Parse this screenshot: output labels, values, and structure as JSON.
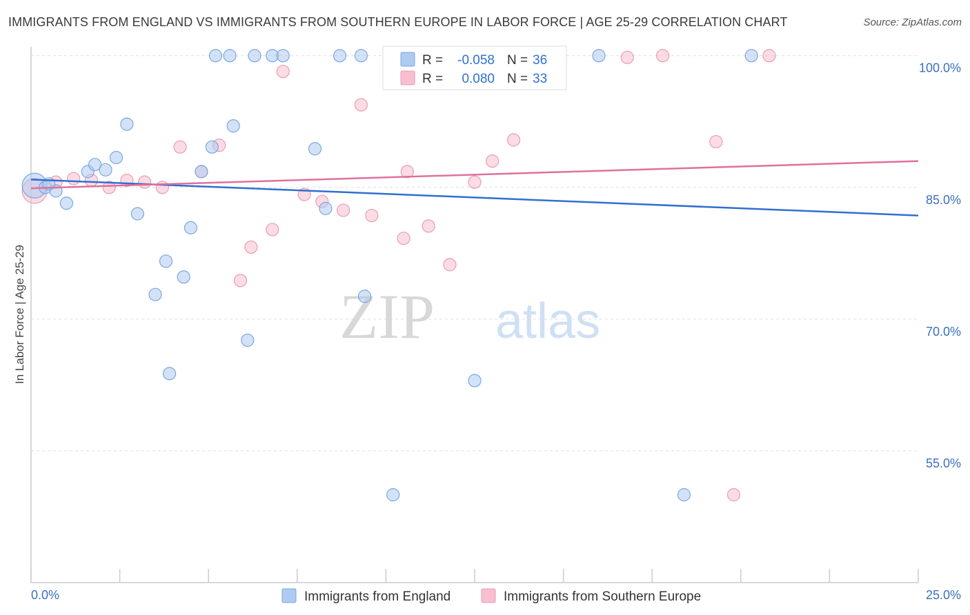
{
  "title": "IMMIGRANTS FROM ENGLAND VS IMMIGRANTS FROM SOUTHERN EUROPE IN LABOR FORCE | AGE 25-29 CORRELATION CHART",
  "source": "Source: ZipAtlas.com",
  "watermark": {
    "zip": "ZIP",
    "atlas": "atlas"
  },
  "legend": {
    "england": {
      "r_label": "R =",
      "r_value": "-0.058",
      "n_label": "N =",
      "n_value": "36"
    },
    "southern": {
      "r_label": "R =",
      "r_value": "0.080",
      "n_label": "N =",
      "n_value": "33"
    }
  },
  "colors": {
    "england_fill": "#aecbf0",
    "england_stroke": "#7aa7e0",
    "england_line": "#2f6fd0",
    "southern_fill": "#f7bfd0",
    "southern_stroke": "#ec9ab3",
    "southern_line": "#e0709a"
  },
  "chart_data": {
    "type": "scatter",
    "xlabel": "",
    "ylabel": "In Labor Force | Age 25-29",
    "xlim": [
      0,
      25
    ],
    "ylim": [
      40,
      101
    ],
    "x_tick_labels": [
      "0.0%",
      "25.0%"
    ],
    "y_ticks": [
      55,
      70,
      85,
      100
    ],
    "y_tick_labels": [
      "55.0%",
      "70.0%",
      "85.0%",
      "100.0%"
    ],
    "grid": true,
    "legend_position": "top-center",
    "series": [
      {
        "name": "Immigrants from England",
        "trend": [
          [
            0,
            85.9
          ],
          [
            25,
            81.8
          ]
        ],
        "points": [
          [
            0.1,
            85.2,
            18
          ],
          [
            0.4,
            85.0,
            9
          ],
          [
            0.7,
            84.6,
            9
          ],
          [
            1.0,
            83.2,
            9
          ],
          [
            1.6,
            86.8,
            9
          ],
          [
            1.8,
            87.6,
            9
          ],
          [
            2.1,
            87.0,
            9
          ],
          [
            2.4,
            88.4,
            9
          ],
          [
            2.7,
            92.2,
            9
          ],
          [
            3.0,
            82.0,
            9
          ],
          [
            3.5,
            72.8,
            9
          ],
          [
            3.8,
            76.6,
            9
          ],
          [
            3.9,
            63.8,
            9
          ],
          [
            4.3,
            74.8,
            9
          ],
          [
            4.5,
            80.4,
            9
          ],
          [
            4.8,
            86.8,
            9
          ],
          [
            5.1,
            89.6,
            9
          ],
          [
            5.2,
            100.0,
            9
          ],
          [
            5.6,
            100.0,
            9
          ],
          [
            5.7,
            92.0,
            9
          ],
          [
            6.1,
            67.6,
            9
          ],
          [
            6.3,
            100.0,
            9
          ],
          [
            6.8,
            100.0,
            9
          ],
          [
            7.1,
            100.0,
            9
          ],
          [
            8.0,
            89.4,
            9
          ],
          [
            8.3,
            82.6,
            9
          ],
          [
            8.7,
            100.0,
            9
          ],
          [
            9.3,
            100.0,
            9
          ],
          [
            9.4,
            72.6,
            9
          ],
          [
            10.2,
            50.0,
            9
          ],
          [
            11.5,
            100.0,
            9
          ],
          [
            12.5,
            63.0,
            9
          ],
          [
            16.0,
            100.0,
            9
          ],
          [
            18.4,
            50.0,
            9
          ],
          [
            20.3,
            100.0,
            9
          ],
          [
            0.5,
            85.4,
            9
          ]
        ]
      },
      {
        "name": "Immigrants from Southern Europe",
        "trend": [
          [
            0,
            84.9
          ],
          [
            25,
            88.0
          ]
        ],
        "points": [
          [
            0.1,
            84.6,
            18
          ],
          [
            0.7,
            85.6,
            9
          ],
          [
            1.2,
            86.0,
            9
          ],
          [
            1.7,
            85.8,
            9
          ],
          [
            2.2,
            85.0,
            9
          ],
          [
            2.7,
            85.8,
            9
          ],
          [
            3.2,
            85.6,
            9
          ],
          [
            3.7,
            85.0,
            9
          ],
          [
            4.2,
            89.6,
            9
          ],
          [
            4.8,
            86.8,
            9
          ],
          [
            5.3,
            89.8,
            9
          ],
          [
            5.9,
            74.4,
            9
          ],
          [
            6.2,
            78.2,
            9
          ],
          [
            6.8,
            80.2,
            9
          ],
          [
            7.1,
            98.2,
            9
          ],
          [
            7.7,
            84.2,
            9
          ],
          [
            8.2,
            83.4,
            9
          ],
          [
            8.8,
            82.4,
            9
          ],
          [
            9.3,
            94.4,
            9
          ],
          [
            9.6,
            81.8,
            9
          ],
          [
            10.5,
            79.2,
            9
          ],
          [
            10.6,
            86.8,
            9
          ],
          [
            11.2,
            80.6,
            9
          ],
          [
            11.8,
            76.2,
            9
          ],
          [
            12.3,
            100.0,
            9
          ],
          [
            12.5,
            85.6,
            9
          ],
          [
            13.0,
            88.0,
            9
          ],
          [
            13.6,
            90.4,
            9
          ],
          [
            16.8,
            99.8,
            9
          ],
          [
            17.8,
            100.0,
            9
          ],
          [
            19.3,
            90.2,
            9
          ],
          [
            19.8,
            50.0,
            9
          ],
          [
            20.8,
            100.0,
            9
          ]
        ]
      }
    ]
  }
}
